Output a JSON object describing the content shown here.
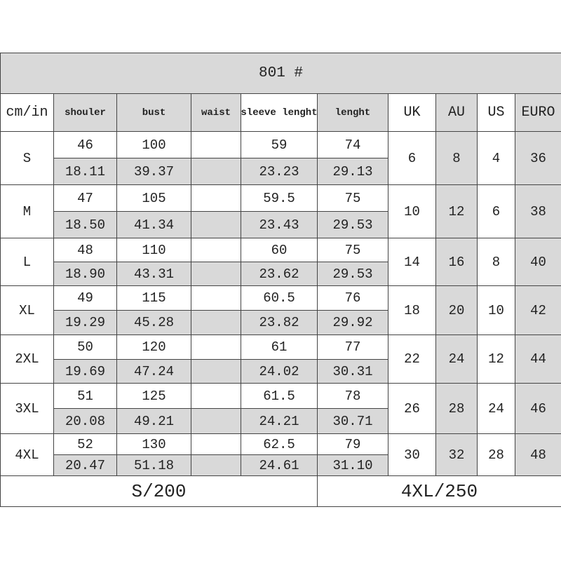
{
  "title": "801 #",
  "header": [
    "cm/in",
    "shouler",
    "bust",
    "waist",
    "sleeve lenght",
    "lenght",
    "UK",
    "AU",
    "US",
    "EURO"
  ],
  "rows": [
    {
      "size": "S",
      "cm": [
        "46",
        "100",
        "59",
        "74"
      ],
      "in": [
        "18.11",
        "39.37",
        "23.23",
        "29.13"
      ],
      "uk": "6",
      "au": "8",
      "us": "4",
      "euro": "36"
    },
    {
      "size": "M",
      "cm": [
        "47",
        "105",
        "59.5",
        "75"
      ],
      "in": [
        "18.50",
        "41.34",
        "23.43",
        "29.53"
      ],
      "uk": "10",
      "au": "12",
      "us": "6",
      "euro": "38"
    },
    {
      "size": "L",
      "cm": [
        "48",
        "110",
        "60",
        "75"
      ],
      "in": [
        "18.90",
        "43.31",
        "23.62",
        "29.53"
      ],
      "uk": "14",
      "au": "16",
      "us": "8",
      "euro": "40"
    },
    {
      "size": "XL",
      "cm": [
        "49",
        "115",
        "60.5",
        "76"
      ],
      "in": [
        "19.29",
        "45.28",
        "23.82",
        "29.92"
      ],
      "uk": "18",
      "au": "20",
      "us": "10",
      "euro": "42"
    },
    {
      "size": "2XL",
      "cm": [
        "50",
        "120",
        "61",
        "77"
      ],
      "in": [
        "19.69",
        "47.24",
        "24.02",
        "30.31"
      ],
      "uk": "22",
      "au": "24",
      "us": "12",
      "euro": "44"
    },
    {
      "size": "3XL",
      "cm": [
        "51",
        "125",
        "61.5",
        "78"
      ],
      "in": [
        "20.08",
        "49.21",
        "24.21",
        "30.71"
      ],
      "uk": "26",
      "au": "28",
      "us": "24",
      "euro": "46"
    },
    {
      "size": "4XL",
      "cm": [
        "52",
        "130",
        "62.5",
        "79"
      ],
      "in": [
        "20.47",
        "51.18",
        "24.61",
        "31.10"
      ],
      "uk": "30",
      "au": "32",
      "us": "28",
      "euro": "48"
    }
  ],
  "footer": [
    "S/200",
    "4XL/250"
  ]
}
